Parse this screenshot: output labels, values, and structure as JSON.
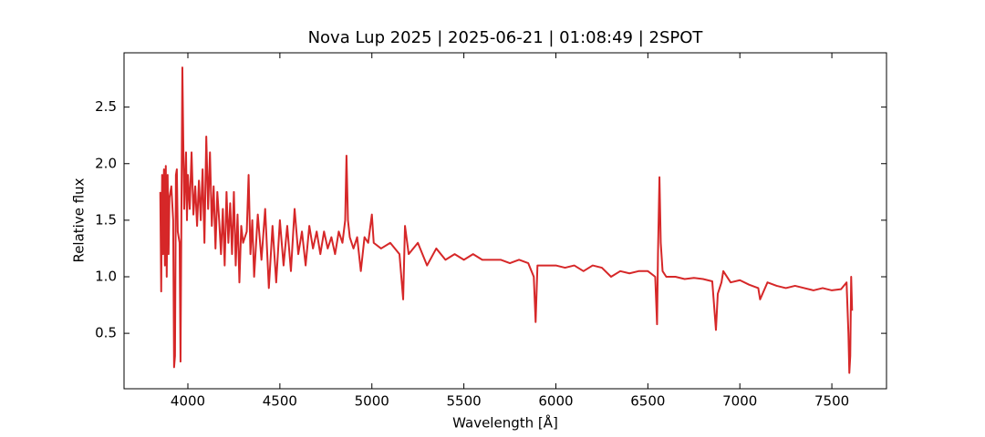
{
  "chart_data": {
    "type": "line",
    "title": "Nova Lup 2025 | 2025-06-21 | 01:08:49 | 2SPOT",
    "xlabel": "Wavelength [Å]",
    "ylabel": "Relative flux",
    "xlim": [
      3653,
      7797
    ],
    "ylim": [
      0.01,
      2.98
    ],
    "xticks": [
      4000,
      4500,
      5000,
      5500,
      6000,
      6500,
      7000,
      7500
    ],
    "yticks": [
      0.5,
      1.0,
      1.5,
      2.0,
      2.5
    ],
    "grid": false,
    "series": [
      {
        "color": "#d62728",
        "x": [
          3850,
          3855,
          3860,
          3865,
          3870,
          3875,
          3880,
          3885,
          3890,
          3895,
          3900,
          3910,
          3920,
          3925,
          3930,
          3935,
          3940,
          3945,
          3955,
          3960,
          3965,
          3970,
          3975,
          3980,
          3990,
          3995,
          4000,
          4010,
          4020,
          4030,
          4040,
          4050,
          4060,
          4070,
          4080,
          4090,
          4100,
          4110,
          4120,
          4130,
          4140,
          4150,
          4160,
          4170,
          4180,
          4190,
          4200,
          4210,
          4220,
          4230,
          4240,
          4250,
          4260,
          4270,
          4280,
          4290,
          4300,
          4320,
          4330,
          4340,
          4350,
          4360,
          4380,
          4400,
          4420,
          4440,
          4460,
          4480,
          4500,
          4520,
          4540,
          4560,
          4580,
          4600,
          4620,
          4640,
          4660,
          4680,
          4700,
          4720,
          4740,
          4760,
          4780,
          4800,
          4820,
          4840,
          4855,
          4862,
          4870,
          4880,
          4900,
          4920,
          4940,
          4960,
          4980,
          5000,
          5010,
          5050,
          5100,
          5150,
          5170,
          5180,
          5200,
          5250,
          5300,
          5350,
          5400,
          5450,
          5500,
          5550,
          5600,
          5650,
          5700,
          5750,
          5800,
          5850,
          5880,
          5890,
          5900,
          5950,
          6000,
          6050,
          6100,
          6150,
          6200,
          6250,
          6300,
          6350,
          6400,
          6450,
          6500,
          6540,
          6550,
          6555,
          6563,
          6570,
          6580,
          6600,
          6650,
          6700,
          6750,
          6800,
          6850,
          6870,
          6880,
          6900,
          6910,
          6950,
          7000,
          7050,
          7100,
          7110,
          7150,
          7200,
          7250,
          7300,
          7350,
          7400,
          7450,
          7500,
          7550,
          7580,
          7590,
          7595,
          7600,
          7605,
          7610
        ],
        "values": [
          1.75,
          0.87,
          1.9,
          1.2,
          1.95,
          1.1,
          1.98,
          1.0,
          1.9,
          1.2,
          1.7,
          1.8,
          1.5,
          0.2,
          0.3,
          1.9,
          1.95,
          1.4,
          1.3,
          0.25,
          1.6,
          2.85,
          2.2,
          1.6,
          2.1,
          1.5,
          1.9,
          1.6,
          2.1,
          1.55,
          1.8,
          1.45,
          1.85,
          1.5,
          1.95,
          1.3,
          2.24,
          1.6,
          2.1,
          1.45,
          1.8,
          1.25,
          1.75,
          1.5,
          1.2,
          1.6,
          1.1,
          1.75,
          1.3,
          1.65,
          1.2,
          1.75,
          1.1,
          1.55,
          0.95,
          1.45,
          1.3,
          1.4,
          1.9,
          1.2,
          1.5,
          1.0,
          1.55,
          1.15,
          1.6,
          0.9,
          1.45,
          0.95,
          1.5,
          1.1,
          1.45,
          1.05,
          1.6,
          1.2,
          1.4,
          1.1,
          1.45,
          1.25,
          1.4,
          1.2,
          1.4,
          1.25,
          1.35,
          1.2,
          1.4,
          1.3,
          1.5,
          2.07,
          1.5,
          1.35,
          1.25,
          1.35,
          1.05,
          1.35,
          1.3,
          1.55,
          1.3,
          1.25,
          1.3,
          1.2,
          0.8,
          1.45,
          1.2,
          1.3,
          1.1,
          1.25,
          1.15,
          1.2,
          1.15,
          1.2,
          1.15,
          1.15,
          1.15,
          1.12,
          1.15,
          1.12,
          1.0,
          0.6,
          1.1,
          1.1,
          1.1,
          1.08,
          1.1,
          1.05,
          1.1,
          1.08,
          1.0,
          1.05,
          1.03,
          1.05,
          1.05,
          1.0,
          0.58,
          1.2,
          1.88,
          1.3,
          1.05,
          1.0,
          1.0,
          0.98,
          0.99,
          0.98,
          0.96,
          0.53,
          0.85,
          0.95,
          1.05,
          0.95,
          0.97,
          0.93,
          0.9,
          0.8,
          0.95,
          0.92,
          0.9,
          0.92,
          0.9,
          0.88,
          0.9,
          0.88,
          0.89,
          0.95,
          0.5,
          0.15,
          0.3,
          1.0,
          0.7
        ]
      }
    ]
  }
}
